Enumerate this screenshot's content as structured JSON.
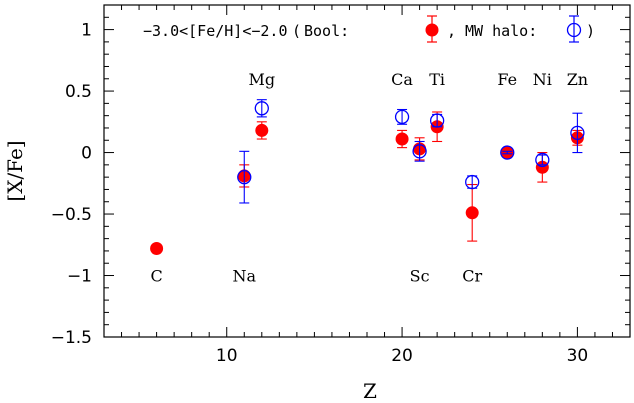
{
  "chart_data": {
    "type": "scatter",
    "xlabel": "Z",
    "ylabel": "[X/Fe]",
    "xlim": [
      3,
      33
    ],
    "ylim": [
      -1.5,
      1.2
    ],
    "x_ticks": [
      10,
      20,
      30
    ],
    "y_ticks": [
      1,
      0.5,
      0,
      -0.5,
      -1,
      -1.5
    ],
    "y_tick_labels": [
      "1",
      "0.5",
      "0",
      "−0.5",
      "−1",
      "−1.5"
    ],
    "legend": {
      "range_label": "−3.0<[Fe/H]<−2.0",
      "open_paren": "(",
      "series1_label": "Bool:",
      "separator": ",",
      "series2_label": "MW halo:",
      "close_paren": ")",
      "placement": "top-center"
    },
    "element_labels": [
      {
        "text": "Mg",
        "x": 12,
        "y": 0.6
      },
      {
        "text": "Ca",
        "x": 20,
        "y": 0.6
      },
      {
        "text": "Ti",
        "x": 22,
        "y": 0.6
      },
      {
        "text": "Fe",
        "x": 26,
        "y": 0.6
      },
      {
        "text": "Ni",
        "x": 28,
        "y": 0.6
      },
      {
        "text": "Zn",
        "x": 30,
        "y": 0.6
      },
      {
        "text": "C",
        "x": 6,
        "y": -1.0
      },
      {
        "text": "Na",
        "x": 11,
        "y": -1.0
      },
      {
        "text": "Sc",
        "x": 21,
        "y": -1.0
      },
      {
        "text": "Cr",
        "x": 24,
        "y": -1.0
      }
    ],
    "series": [
      {
        "name": "Bool",
        "color": "#ff0000",
        "marker": "filled-circle",
        "points": [
          {
            "x": 6,
            "y": -0.78,
            "err": 0
          },
          {
            "x": 11,
            "y": -0.19,
            "err": 0.09
          },
          {
            "x": 12,
            "y": 0.18,
            "err": 0.07
          },
          {
            "x": 20,
            "y": 0.11,
            "err": 0.07
          },
          {
            "x": 21,
            "y": 0.03,
            "err": 0.09
          },
          {
            "x": 22,
            "y": 0.21,
            "err": 0.12
          },
          {
            "x": 24,
            "y": -0.49,
            "err": 0.23
          },
          {
            "x": 26,
            "y": 0.0,
            "err": 0.02
          },
          {
            "x": 28,
            "y": -0.12,
            "err": 0.12
          },
          {
            "x": 30,
            "y": 0.12,
            "err": 0.06
          }
        ]
      },
      {
        "name": "MW halo",
        "color": "#0000ff",
        "marker": "open-circle",
        "points": [
          {
            "x": 11,
            "y": -0.2,
            "err": 0.21
          },
          {
            "x": 12,
            "y": 0.36,
            "err": 0.07
          },
          {
            "x": 20,
            "y": 0.29,
            "err": 0.06
          },
          {
            "x": 21,
            "y": 0.01,
            "err": 0.08
          },
          {
            "x": 22,
            "y": 0.26,
            "err": 0.05
          },
          {
            "x": 24,
            "y": -0.24,
            "err": 0.05
          },
          {
            "x": 26,
            "y": 0.0,
            "err": 0.01
          },
          {
            "x": 28,
            "y": -0.06,
            "err": 0.04
          },
          {
            "x": 30,
            "y": 0.16,
            "err": 0.16
          }
        ]
      }
    ]
  }
}
